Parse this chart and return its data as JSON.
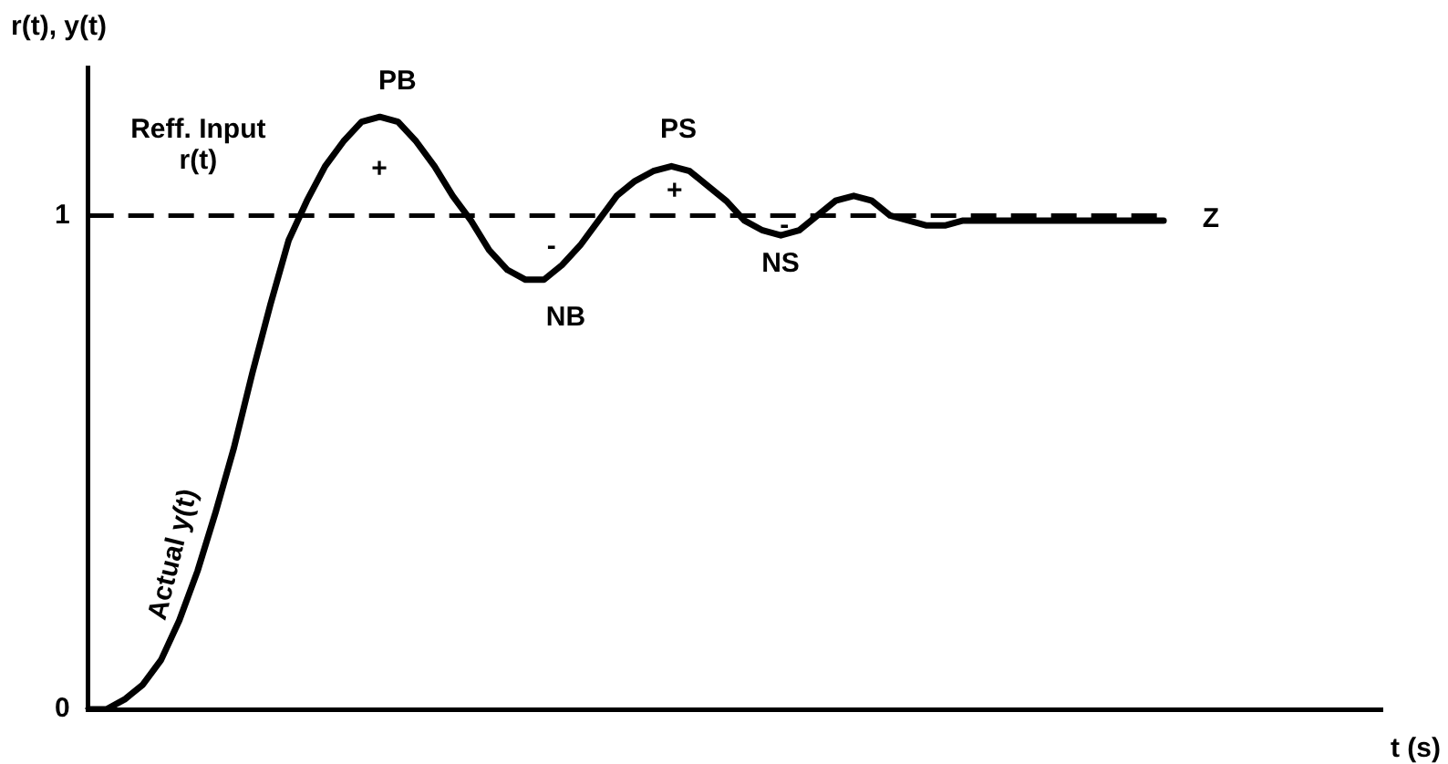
{
  "chart_data": {
    "type": "line",
    "xlabel": "t (s)",
    "ylabel": "r(t), y(t)",
    "categories": [
      null,
      null,
      null,
      null,
      null,
      null,
      null,
      null,
      null,
      null,
      null,
      null,
      null,
      null,
      null,
      null,
      null,
      null,
      null,
      null,
      null,
      null,
      null,
      null,
      null,
      null,
      null,
      null,
      null,
      null,
      null,
      null,
      null,
      null,
      null,
      null,
      null,
      null,
      null,
      null,
      null,
      null,
      null,
      null,
      null,
      null,
      null,
      null,
      null,
      null,
      null,
      null,
      null,
      null,
      null,
      null,
      null,
      null,
      null,
      null,
      null,
      null,
      null,
      null,
      null,
      null,
      null,
      null,
      null,
      null,
      null,
      null
    ],
    "series": [
      {
        "color": "#000000",
        "values": [
          0,
          0.0,
          0.02,
          0.05,
          0.1,
          0.18,
          0.28,
          0.4,
          0.53,
          0.68,
          0.82,
          0.95,
          1.03,
          1.1,
          1.15,
          1.19,
          1.2,
          1.19,
          1.15,
          1.1,
          1.04,
          0.99,
          0.93,
          0.89,
          0.87,
          0.87,
          0.9,
          0.94,
          0.99,
          1.04,
          1.07,
          1.09,
          1.1,
          1.09,
          1.06,
          1.03,
          0.99,
          0.97,
          0.96,
          0.97,
          1.0,
          1.03,
          1.04,
          1.03,
          1.0,
          0.99,
          0.98,
          0.98,
          0.99,
          0.99,
          0.99,
          0.99,
          0.99,
          0.99,
          0.99,
          0.99,
          0.99,
          0.99,
          0.99,
          0.99,
          null,
          null,
          null,
          null,
          null,
          null,
          null,
          null,
          null,
          null,
          null,
          null
        ]
      }
    ],
    "ylim": [
      0,
      1.3
    ],
    "yticks": [
      0,
      1
    ],
    "tick_labels": "y",
    "grid": false,
    "legend": false,
    "marker": "none",
    "line_style": "solid",
    "ref_lines": [
      {
        "axis": "y",
        "value": 1,
        "label": "Z",
        "color": "#000000",
        "line_style": "dashed"
      }
    ],
    "annotations": [
      "Reff. Input\nr(t)",
      "PB",
      "+",
      "NB",
      "-",
      "PS",
      "+",
      "NS",
      "-",
      "Actual y(t)"
    ]
  }
}
